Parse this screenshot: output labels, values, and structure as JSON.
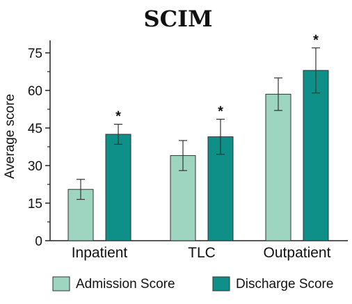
{
  "chart_data": {
    "type": "bar",
    "title": "SCIM",
    "ylabel": "Average score",
    "xlabel": "",
    "ylim": [
      0,
      80
    ],
    "yticks": [
      0,
      15,
      30,
      45,
      60,
      75
    ],
    "categories": [
      "Inpatient",
      "TLC",
      "Outpatient"
    ],
    "series": [
      {
        "name": "Admission Score",
        "color": "#9dd5c0",
        "values": [
          20.5,
          34,
          58.5
        ],
        "error": [
          4,
          6,
          6.5
        ],
        "significance": [
          "",
          "",
          ""
        ]
      },
      {
        "name": "Discharge Score",
        "color": "#0e8f88",
        "values": [
          42.5,
          41.5,
          68
        ],
        "error": [
          4,
          7,
          9
        ],
        "significance": [
          "*",
          "*",
          "*"
        ]
      }
    ],
    "legend_position": "bottom"
  }
}
